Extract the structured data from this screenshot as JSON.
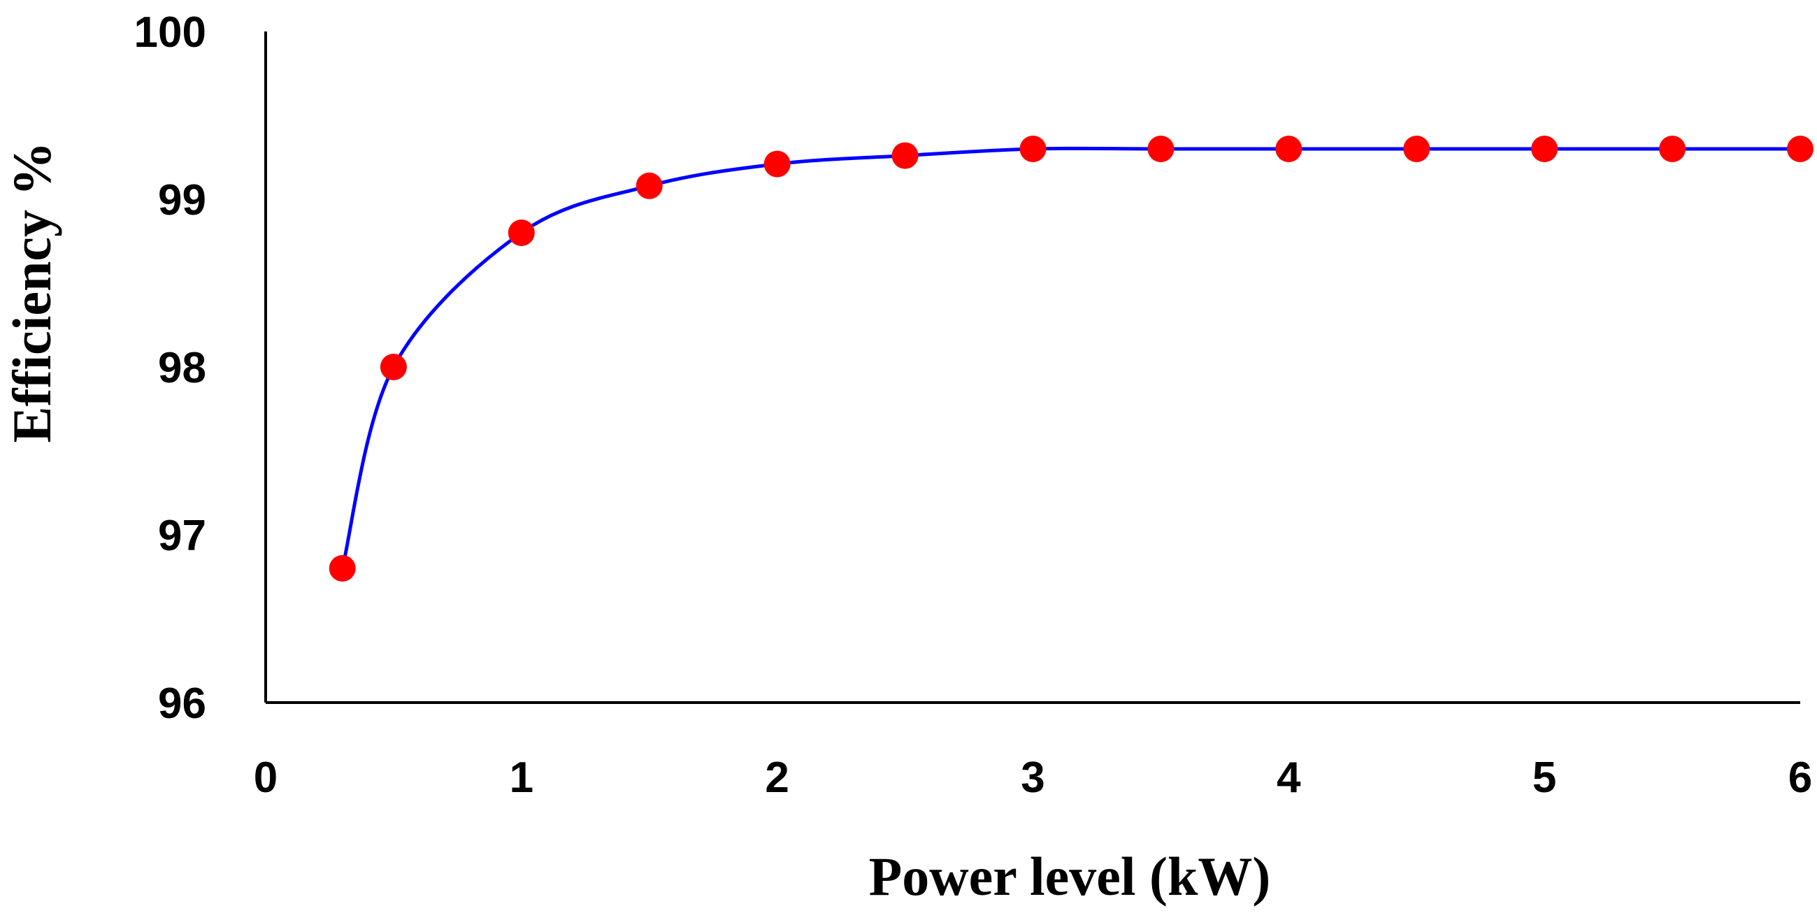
{
  "chart_data": {
    "type": "line",
    "title": "",
    "xlabel": "Power level (kW)",
    "ylabel": "Efficiency %",
    "xlim": [
      0,
      6
    ],
    "ylim": [
      96,
      100
    ],
    "xticks": [
      0,
      1,
      2,
      3,
      4,
      5,
      6
    ],
    "yticks": [
      96,
      97,
      98,
      99,
      100
    ],
    "grid": false,
    "series": [
      {
        "name": "Efficiency",
        "line_color": "#0000ff",
        "marker_color": "#ff0000",
        "x": [
          0.3,
          0.5,
          1.0,
          1.5,
          2.0,
          2.5,
          3.0,
          3.5,
          4.0,
          4.5,
          5.0,
          5.5,
          6.0
        ],
        "y": [
          96.8,
          98.0,
          98.8,
          99.08,
          99.21,
          99.26,
          99.3,
          99.3,
          99.3,
          99.3,
          99.3,
          99.3,
          99.3
        ]
      }
    ]
  }
}
